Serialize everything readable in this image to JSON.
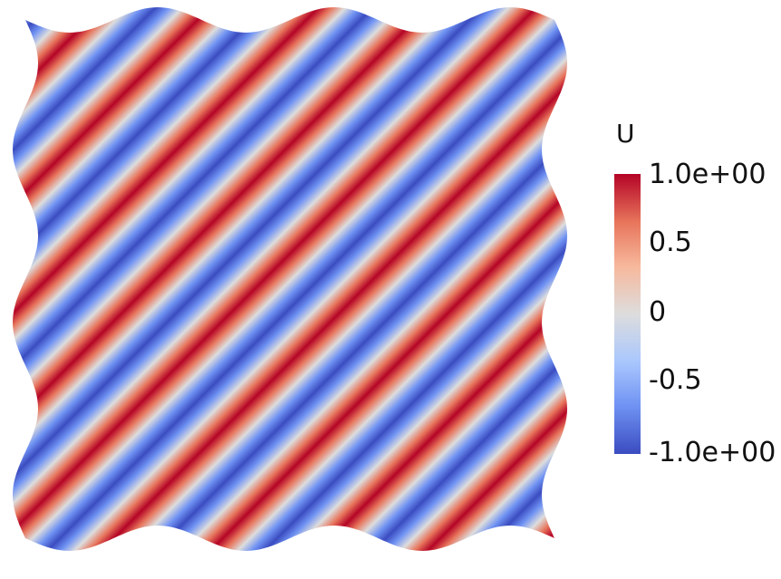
{
  "legend": {
    "title": "U",
    "tick_labels": [
      "1.0e+00",
      "0.5",
      "0",
      "-0.5",
      "-1.0e+00"
    ],
    "range": [
      -1.0,
      1.0
    ]
  },
  "colormap": {
    "name": "cool-to-warm",
    "stops": [
      "#3b4cc0",
      "#6f92f3",
      "#aac7fd",
      "#dddddd",
      "#f7b89c",
      "#e7745b",
      "#b40426"
    ]
  }
}
